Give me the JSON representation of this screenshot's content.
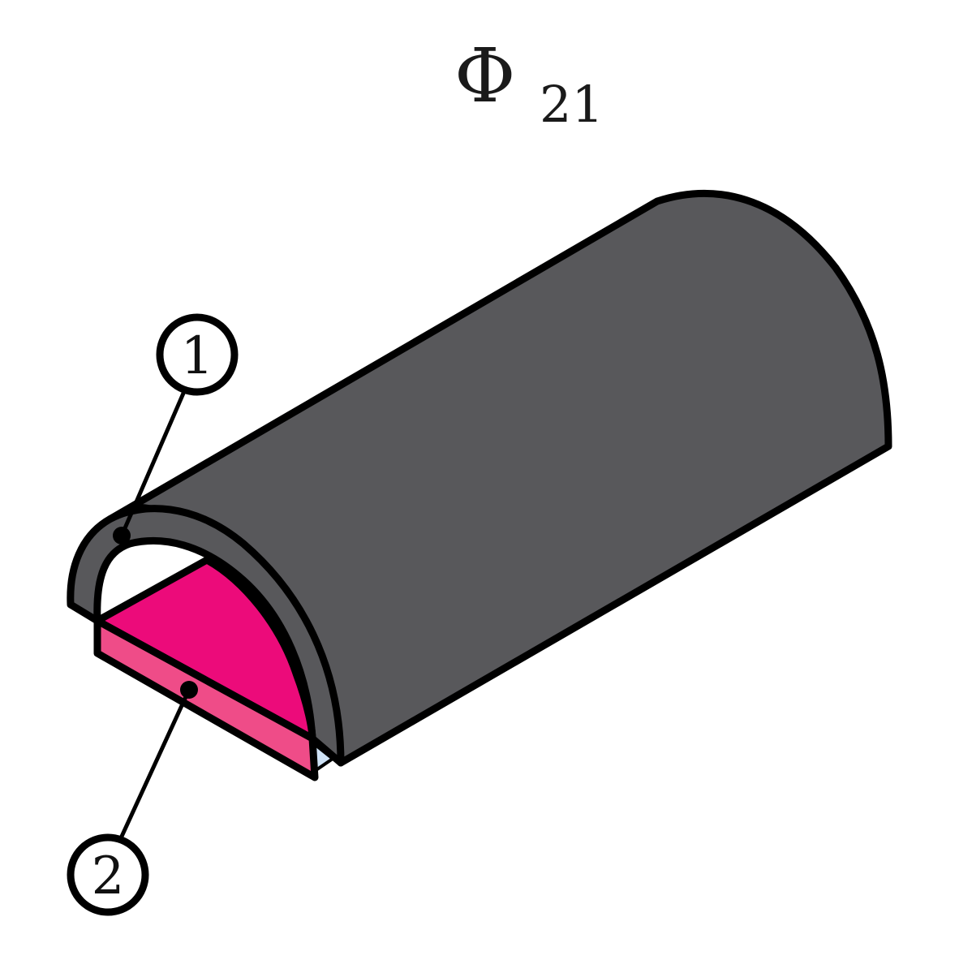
{
  "title": {
    "symbol": "Φ",
    "subscript": "21"
  },
  "callouts": [
    {
      "label": "1"
    },
    {
      "label": "2"
    }
  ],
  "colors": {
    "outer_shell": "#58585b",
    "inner_core_top": "#ec0b7a",
    "inner_core_side": "#ef4c88",
    "back_gap": "#cfe3f7",
    "outline": "#000000",
    "background": "#ffffff"
  }
}
